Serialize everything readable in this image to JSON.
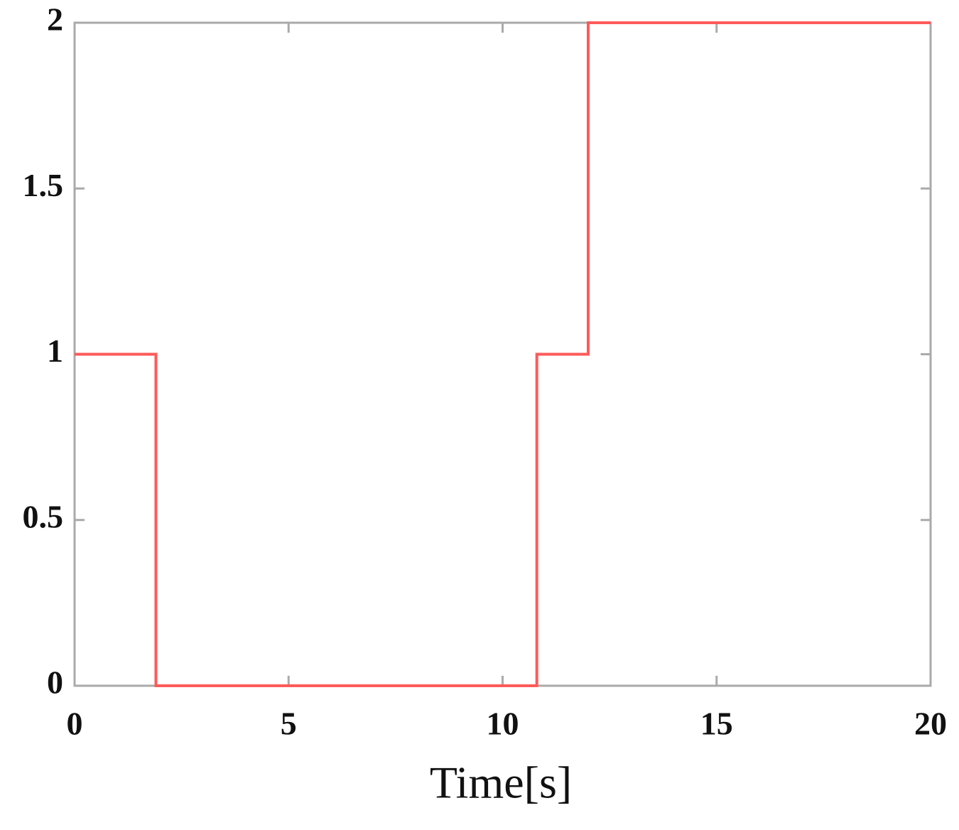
{
  "chart_data": {
    "type": "line",
    "xlabel": "Time[s]",
    "x": [
      0,
      1.9,
      1.9,
      10.8,
      10.8,
      12,
      12,
      20
    ],
    "series": [
      {
        "color": "#ff5a5a",
        "values": [
          1,
          1,
          0,
          0,
          1,
          1,
          2,
          2
        ]
      }
    ],
    "xlim": [
      0,
      20
    ],
    "xticks": [
      0,
      5,
      10,
      15,
      20
    ],
    "ylim": [
      0,
      2
    ],
    "yticks": [
      0,
      0.5,
      1,
      1.5,
      2
    ],
    "grid": false
  }
}
